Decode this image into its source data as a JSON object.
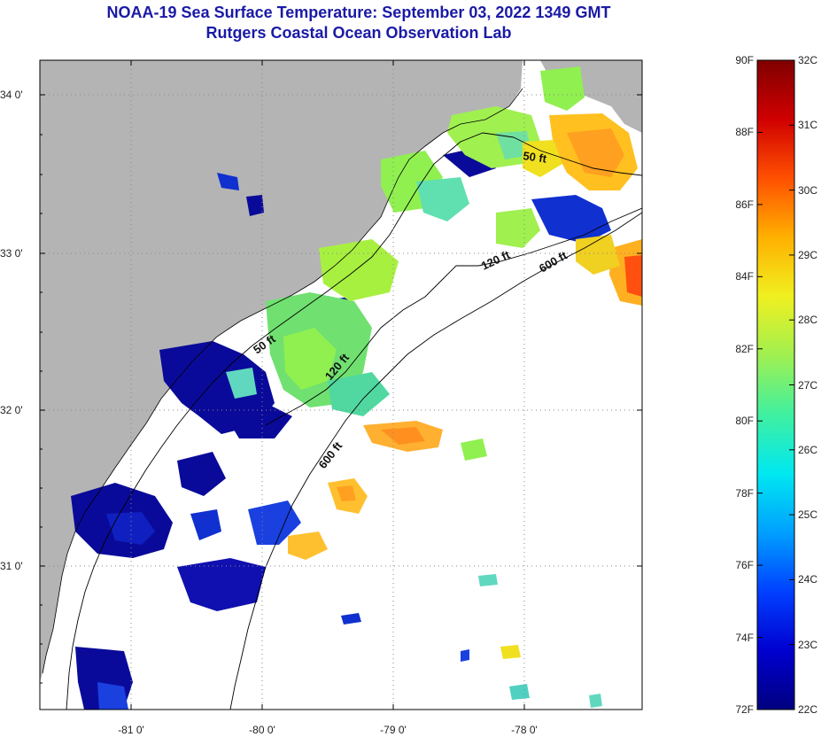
{
  "header": {
    "title_line1": "NOAA-19 Sea Surface Temperature:  September 03, 2022 1349 GMT",
    "title_line2": "Rutgers Coastal Ocean Observation Lab"
  },
  "map": {
    "lat_ticks": [
      "34 0'",
      "33 0'",
      "32 0'",
      "31 0'"
    ],
    "lon_ticks": [
      "-81 0'",
      "-80 0'",
      "-79 0'",
      "-78 0'"
    ],
    "contours": [
      "50 ft",
      "120 ft",
      "600 ft",
      "50 ft",
      "120 ft",
      "600 ft"
    ],
    "colors": {
      "land": "#b4b4b4",
      "ocean_nodata": "#ffffff"
    }
  },
  "colorbar": {
    "f_labels": [
      "90F",
      "88F",
      "86F",
      "84F",
      "82F",
      "80F",
      "78F",
      "76F",
      "74F",
      "72F"
    ],
    "c_labels": [
      "32C",
      "31C",
      "30C",
      "29C",
      "28C",
      "27C",
      "26C",
      "25C",
      "24C",
      "23C",
      "22C"
    ],
    "gradient": [
      "#000080",
      "#0000d0",
      "#0040ff",
      "#00a0ff",
      "#00e8f0",
      "#40f0a0",
      "#a0f050",
      "#f0f020",
      "#ffb000",
      "#ff5000",
      "#d00000",
      "#800000"
    ]
  }
}
